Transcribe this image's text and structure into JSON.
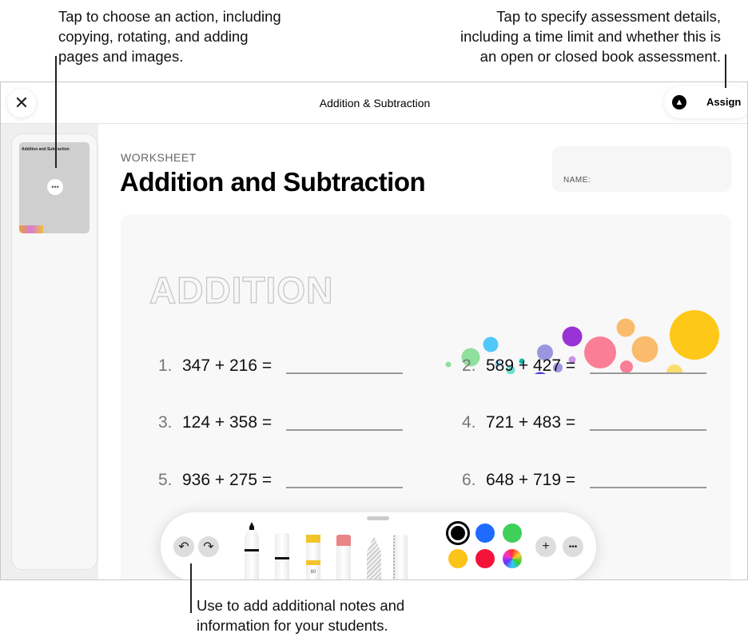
{
  "callouts": {
    "top_left": [
      "Tap to choose an action, including",
      "copying, rotating, and adding",
      "pages and images."
    ],
    "top_right": [
      "Tap to specify assessment details,",
      "including a time limit and whether this is",
      "an open or closed book assessment."
    ],
    "bottom": [
      "Use to add additional notes and",
      "information for your students."
    ]
  },
  "header": {
    "title": "Addition & Subtraction",
    "assign_label": "Assign",
    "close_icon": "close-icon",
    "markup_icon": "pen-tip-icon"
  },
  "sidebar": {
    "thumbnail_title": "Addition and Subtraction",
    "more_icon": "ellipsis-icon"
  },
  "worksheet": {
    "eyebrow": "WORKSHEET",
    "title": "Addition and Subtraction",
    "name_label": "NAME:",
    "section": "ADDITION",
    "problems": [
      {
        "n": "1.",
        "expr": "347 + 216 ="
      },
      {
        "n": "2.",
        "expr": "589 + 427 ="
      },
      {
        "n": "3.",
        "expr": "124 + 358 ="
      },
      {
        "n": "4.",
        "expr": "721 + 483 ="
      },
      {
        "n": "5.",
        "expr": "936 + 275 ="
      },
      {
        "n": "6.",
        "expr": "648 + 719 ="
      }
    ]
  },
  "toolbar": {
    "highlighter_label": "80",
    "colors": [
      "#000000",
      "#1f6bff",
      "#3fd05a",
      "#fcc419",
      "#f5133a"
    ],
    "selected_color": "#000000",
    "tools": [
      "pen",
      "fineliner",
      "highlighter",
      "eraser",
      "pencil",
      "ruler"
    ],
    "buttons": {
      "undo": "undo-icon",
      "redo": "redo-icon",
      "add": "+",
      "more": "•••"
    }
  }
}
